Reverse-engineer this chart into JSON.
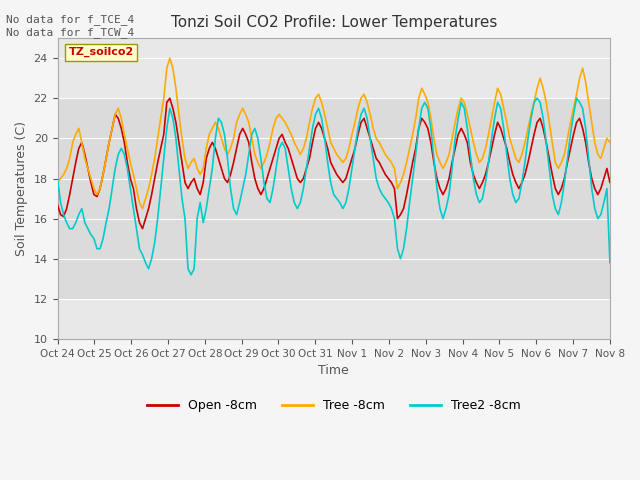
{
  "title": "Tonzi Soil CO2 Profile: Lower Temperatures",
  "ylabel": "Soil Temperatures (C)",
  "xlabel": "Time",
  "top_left_text": "No data for f_TCE_4\nNo data for f_TCW_4",
  "legend_box_text": "TZ_soilco2",
  "ylim": [
    10,
    25
  ],
  "yticks": [
    10,
    12,
    14,
    16,
    18,
    20,
    22,
    24
  ],
  "bg_inner_color": "#e8e8e8",
  "bg_outer_color": "#f5f5f5",
  "shade_low": 12,
  "shade_high": 22,
  "shade_color": "#d0d0d0",
  "xtick_labels": [
    "Oct 24",
    "Oct 25",
    "Oct 26",
    "Oct 27",
    "Oct 28",
    "Oct 29",
    "Oct 30",
    "Oct 31",
    "Nov 1",
    "Nov 2",
    "Nov 3",
    "Nov 4",
    "Nov 5",
    "Nov 6",
    "Nov 7",
    "Nov 8"
  ],
  "line_colors": {
    "open": "#cc0000",
    "tree": "#ffaa00",
    "tree2": "#00cccc"
  },
  "legend_labels": [
    "Open -8cm",
    "Tree -8cm",
    "Tree2 -8cm"
  ],
  "open_data": [
    16.7,
    16.2,
    16.1,
    16.5,
    17.2,
    18.0,
    18.8,
    19.5,
    19.8,
    19.2,
    18.5,
    17.8,
    17.2,
    17.1,
    17.5,
    18.2,
    19.0,
    19.8,
    20.5,
    21.2,
    21.0,
    20.5,
    19.8,
    18.8,
    18.0,
    17.5,
    16.5,
    15.8,
    15.5,
    16.0,
    16.5,
    17.2,
    18.0,
    18.8,
    19.5,
    20.2,
    21.8,
    22.0,
    21.5,
    20.8,
    19.8,
    18.8,
    17.8,
    17.5,
    17.8,
    18.0,
    17.5,
    17.2,
    17.8,
    19.0,
    19.5,
    19.8,
    19.5,
    19.0,
    18.5,
    18.0,
    17.8,
    18.2,
    18.8,
    19.5,
    20.2,
    20.5,
    20.2,
    19.8,
    18.8,
    18.0,
    17.5,
    17.2,
    17.5,
    18.0,
    18.5,
    19.0,
    19.5,
    20.0,
    20.2,
    19.8,
    19.5,
    19.0,
    18.5,
    18.0,
    17.8,
    18.0,
    18.5,
    19.0,
    19.8,
    20.5,
    20.8,
    20.5,
    20.0,
    19.5,
    18.8,
    18.5,
    18.2,
    18.0,
    17.8,
    18.0,
    18.5,
    19.0,
    19.5,
    20.2,
    20.8,
    21.0,
    20.5,
    20.0,
    19.5,
    19.0,
    18.8,
    18.5,
    18.2,
    18.0,
    17.8,
    17.5,
    16.0,
    16.2,
    16.5,
    17.2,
    18.0,
    18.8,
    19.5,
    20.5,
    21.0,
    20.8,
    20.5,
    19.8,
    18.8,
    18.0,
    17.5,
    17.2,
    17.5,
    18.0,
    18.8,
    19.5,
    20.2,
    20.5,
    20.2,
    19.8,
    18.8,
    18.2,
    17.8,
    17.5,
    17.8,
    18.2,
    18.8,
    19.5,
    20.2,
    20.8,
    20.5,
    20.0,
    19.5,
    18.8,
    18.2,
    17.8,
    17.5,
    17.8,
    18.2,
    18.8,
    19.5,
    20.2,
    20.8,
    21.0,
    20.5,
    19.8,
    19.0,
    18.2,
    17.5,
    17.2,
    17.5,
    18.0,
    18.8,
    19.5,
    20.2,
    20.8,
    21.0,
    20.5,
    19.8,
    18.8,
    18.0,
    17.5,
    17.2,
    17.5,
    18.0,
    18.5,
    17.8
  ],
  "tree_data": [
    17.8,
    18.0,
    18.2,
    18.5,
    19.0,
    19.8,
    20.2,
    20.5,
    19.8,
    19.0,
    18.5,
    18.0,
    17.5,
    17.2,
    17.5,
    18.2,
    19.0,
    19.8,
    20.5,
    21.2,
    21.5,
    21.0,
    20.2,
    19.5,
    18.8,
    18.2,
    17.5,
    16.8,
    16.5,
    17.0,
    17.5,
    18.2,
    19.0,
    20.0,
    21.0,
    22.0,
    23.5,
    24.0,
    23.5,
    22.5,
    21.2,
    20.0,
    19.0,
    18.5,
    18.8,
    19.0,
    18.5,
    18.2,
    18.5,
    19.5,
    20.2,
    20.5,
    20.8,
    20.5,
    20.0,
    19.5,
    19.2,
    19.5,
    20.0,
    20.8,
    21.2,
    21.5,
    21.2,
    20.8,
    20.0,
    19.2,
    18.8,
    18.5,
    18.8,
    19.2,
    19.8,
    20.5,
    21.0,
    21.2,
    21.0,
    20.8,
    20.5,
    20.2,
    19.8,
    19.5,
    19.2,
    19.5,
    20.0,
    20.8,
    21.5,
    22.0,
    22.2,
    21.8,
    21.2,
    20.5,
    19.8,
    19.5,
    19.2,
    19.0,
    18.8,
    19.0,
    19.5,
    20.2,
    20.8,
    21.5,
    22.0,
    22.2,
    21.8,
    21.2,
    20.5,
    20.0,
    19.8,
    19.5,
    19.2,
    19.0,
    18.8,
    18.5,
    17.5,
    17.8,
    18.2,
    18.8,
    19.5,
    20.2,
    21.0,
    22.0,
    22.5,
    22.2,
    21.8,
    21.0,
    20.0,
    19.2,
    18.8,
    18.5,
    18.8,
    19.2,
    20.0,
    20.8,
    21.5,
    22.0,
    21.8,
    21.2,
    20.5,
    19.8,
    19.2,
    18.8,
    19.0,
    19.5,
    20.2,
    21.0,
    21.8,
    22.5,
    22.2,
    21.5,
    20.8,
    20.0,
    19.5,
    19.0,
    18.8,
    19.2,
    19.8,
    20.5,
    21.2,
    21.8,
    22.5,
    23.0,
    22.5,
    21.8,
    20.8,
    19.8,
    18.8,
    18.5,
    18.8,
    19.2,
    20.0,
    20.8,
    21.5,
    22.2,
    23.0,
    23.5,
    22.8,
    21.8,
    20.8,
    19.8,
    19.2,
    19.0,
    19.5,
    20.0,
    19.8
  ],
  "tree2_data": [
    18.0,
    16.8,
    16.2,
    15.8,
    15.5,
    15.5,
    15.8,
    16.2,
    16.5,
    15.8,
    15.5,
    15.2,
    15.0,
    14.5,
    14.5,
    15.0,
    15.8,
    16.5,
    17.5,
    18.5,
    19.2,
    19.5,
    19.2,
    18.5,
    17.5,
    16.5,
    15.5,
    14.5,
    14.2,
    13.8,
    13.5,
    14.0,
    14.8,
    16.0,
    17.5,
    19.0,
    20.5,
    21.5,
    21.0,
    20.0,
    18.5,
    17.0,
    16.0,
    13.5,
    13.2,
    13.5,
    16.0,
    16.8,
    15.8,
    16.5,
    17.5,
    18.5,
    20.0,
    21.0,
    20.8,
    20.2,
    19.0,
    17.5,
    16.5,
    16.2,
    16.8,
    17.5,
    18.2,
    19.2,
    20.2,
    20.5,
    20.0,
    19.0,
    17.8,
    17.0,
    16.8,
    17.5,
    18.5,
    19.5,
    19.8,
    19.5,
    18.5,
    17.5,
    16.8,
    16.5,
    16.8,
    17.5,
    18.5,
    19.5,
    20.5,
    21.2,
    21.5,
    21.0,
    20.0,
    18.8,
    17.8,
    17.2,
    17.0,
    16.8,
    16.5,
    16.8,
    17.5,
    18.5,
    19.5,
    20.5,
    21.2,
    21.5,
    21.0,
    20.0,
    19.0,
    18.0,
    17.5,
    17.2,
    17.0,
    16.8,
    16.5,
    16.0,
    14.5,
    14.0,
    14.5,
    15.5,
    16.8,
    18.0,
    19.2,
    20.5,
    21.5,
    21.8,
    21.5,
    20.5,
    19.0,
    17.5,
    16.5,
    16.0,
    16.5,
    17.2,
    18.5,
    20.0,
    21.0,
    21.8,
    21.5,
    20.5,
    19.2,
    18.0,
    17.2,
    16.8,
    17.0,
    17.8,
    18.8,
    20.0,
    21.0,
    21.8,
    21.5,
    20.5,
    19.2,
    18.0,
    17.2,
    16.8,
    17.0,
    17.8,
    18.8,
    20.0,
    21.0,
    21.8,
    22.0,
    21.8,
    21.0,
    19.8,
    18.5,
    17.2,
    16.5,
    16.2,
    16.8,
    17.8,
    19.0,
    20.2,
    21.2,
    22.0,
    21.8,
    21.5,
    20.5,
    19.0,
    17.5,
    16.5,
    16.0,
    16.2,
    16.8,
    17.5,
    13.8
  ]
}
